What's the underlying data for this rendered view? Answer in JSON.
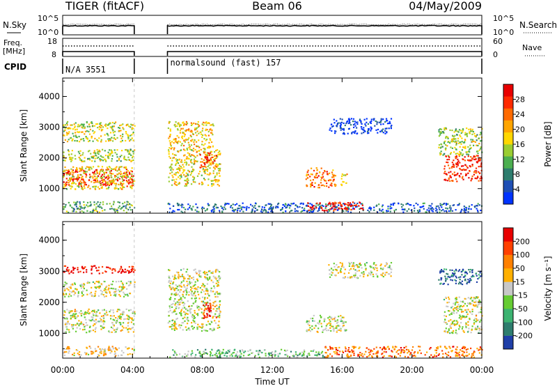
{
  "header": {
    "station": "TIGER (fitACF)",
    "beam": "Beam 06",
    "date": "04/May/2009"
  },
  "strips": {
    "nsky_label": "N.Sky",
    "nsky_ticks": [
      "10^5",
      "10^0"
    ],
    "nsearch_label": "N.Search",
    "nsearch_ticks": [
      "10^5",
      "10^0"
    ],
    "freq_label_1": "Freq.",
    "freq_label_2": "[MHz]",
    "freq_ticks": [
      "18",
      "8"
    ],
    "nave_label": "Nave",
    "nave_ticks": [
      "60",
      "0"
    ],
    "cpid_label": "CPID",
    "cpid_segments": [
      {
        "start": 0,
        "end": 4.1,
        "name": "N/A 3551"
      },
      {
        "start": 6.0,
        "end": 24,
        "name": "normalsound (fast) 157"
      }
    ]
  },
  "chart_data": [
    {
      "type": "heatmap",
      "title": "",
      "xlabel": "",
      "ylabel": "Slant Range [km]",
      "xlim": [
        0,
        24
      ],
      "ylim": [
        200,
        4600
      ],
      "x_ticks": [
        "00:00",
        "04:00",
        "08:00",
        "12:00",
        "16:00",
        "20:00",
        "00:00"
      ],
      "y_ticks": [
        "1000",
        "2000",
        "3000",
        "4000"
      ],
      "colorbar": {
        "label": "Power [dB]",
        "ticks": [
          "4",
          "8",
          "12",
          "16",
          "20",
          "24",
          "28"
        ],
        "colors": [
          "#0033ff",
          "#1f4fb4",
          "#2e7d6e",
          "#4caf50",
          "#9acd32",
          "#ffd700",
          "#ffa500",
          "#ff6a00",
          "#ff2a00",
          "#e80000"
        ]
      },
      "regions": [
        {
          "t0": 0.0,
          "t1": 4.1,
          "r0": 1100,
          "r1": 1650,
          "level": 0.88
        },
        {
          "t0": 0.0,
          "t1": 4.1,
          "r0": 1000,
          "r1": 1750,
          "level": 0.55
        },
        {
          "t0": 0.0,
          "t1": 4.1,
          "r0": 1900,
          "r1": 2300,
          "level": 0.45
        },
        {
          "t0": 0.0,
          "t1": 4.1,
          "r0": 2550,
          "r1": 3200,
          "level": 0.5
        },
        {
          "t0": 0.0,
          "t1": 4.1,
          "r0": 250,
          "r1": 600,
          "level": 0.35
        },
        {
          "t0": 6.0,
          "t1": 8.6,
          "r0": 2300,
          "r1": 3200,
          "level": 0.6
        },
        {
          "t0": 6.0,
          "t1": 9.0,
          "r0": 1100,
          "r1": 2300,
          "level": 0.55
        },
        {
          "t0": 7.8,
          "t1": 8.8,
          "r0": 1700,
          "r1": 2200,
          "level": 0.8
        },
        {
          "t0": 6.0,
          "t1": 24.0,
          "r0": 250,
          "r1": 550,
          "level": 0.15
        },
        {
          "t0": 13.9,
          "t1": 15.6,
          "r0": 1050,
          "r1": 1700,
          "level": 0.75
        },
        {
          "t0": 15.9,
          "t1": 16.3,
          "r0": 1100,
          "r1": 1500,
          "level": 0.6
        },
        {
          "t0": 14.0,
          "t1": 17.2,
          "r0": 300,
          "r1": 600,
          "level": 0.92
        },
        {
          "t0": 15.2,
          "t1": 18.8,
          "r0": 2800,
          "r1": 3300,
          "level": 0.05
        },
        {
          "t0": 21.8,
          "t1": 24.0,
          "r0": 1250,
          "r1": 2100,
          "level": 0.88
        },
        {
          "t0": 21.5,
          "t1": 24.0,
          "r0": 2100,
          "r1": 3000,
          "level": 0.45
        }
      ]
    },
    {
      "type": "heatmap",
      "title": "",
      "xlabel": "Time UT",
      "ylabel": "Slant Range [km]",
      "xlim": [
        0,
        24
      ],
      "ylim": [
        200,
        4600
      ],
      "x_ticks": [
        "00:00",
        "04:00",
        "08:00",
        "12:00",
        "16:00",
        "20:00",
        "00:00"
      ],
      "y_ticks": [
        "1000",
        "2000",
        "3000",
        "4000"
      ],
      "colorbar": {
        "label": "Velocity [m s⁻¹]",
        "ticks": [
          "200",
          "100",
          "50",
          "15",
          "-15",
          "-50",
          "-100",
          "-200"
        ],
        "colors": [
          "#1f3fa8",
          "#2e7d6e",
          "#3cb371",
          "#66cc33",
          "#c8c8c8",
          "#ffb000",
          "#ff8000",
          "#ff4000",
          "#e80000"
        ]
      },
      "regions": [
        {
          "t0": 0.0,
          "t1": 4.1,
          "r0": 2950,
          "r1": 3200,
          "level": 0.95
        },
        {
          "t0": 0.0,
          "t1": 4.1,
          "r0": 2200,
          "r1": 2700,
          "level": 0.5
        },
        {
          "t0": 0.0,
          "t1": 4.1,
          "r0": 1050,
          "r1": 1800,
          "level": 0.5
        },
        {
          "t0": 0.0,
          "t1": 4.1,
          "r0": 300,
          "r1": 600,
          "level": 0.6
        },
        {
          "t0": 6.0,
          "t1": 9.0,
          "r0": 1100,
          "r1": 3100,
          "level": 0.5
        },
        {
          "t0": 8.0,
          "t1": 8.8,
          "r0": 1500,
          "r1": 2000,
          "level": 0.9
        },
        {
          "t0": 6.0,
          "t1": 15.0,
          "r0": 250,
          "r1": 500,
          "level": 0.35
        },
        {
          "t0": 15.0,
          "t1": 24.0,
          "r0": 250,
          "r1": 600,
          "level": 0.75
        },
        {
          "t0": 13.9,
          "t1": 16.2,
          "r0": 1050,
          "r1": 1600,
          "level": 0.5
        },
        {
          "t0": 15.2,
          "t1": 18.8,
          "r0": 2800,
          "r1": 3300,
          "level": 0.5
        },
        {
          "t0": 21.8,
          "t1": 24.0,
          "r0": 1000,
          "r1": 2200,
          "level": 0.5
        },
        {
          "t0": 21.5,
          "t1": 24.0,
          "r0": 2600,
          "r1": 3100,
          "level": 0.1
        }
      ]
    }
  ]
}
